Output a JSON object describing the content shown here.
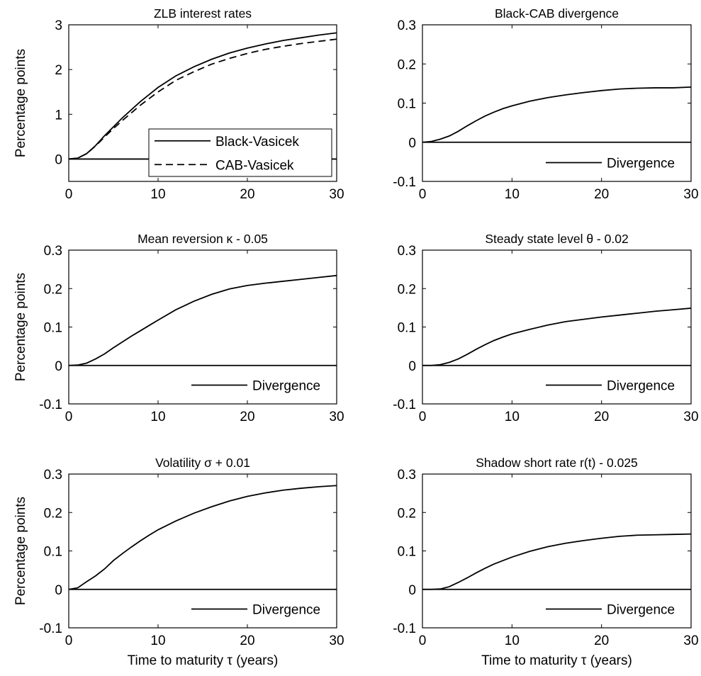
{
  "chart_data": [
    {
      "type": "line",
      "title": "ZLB interest rates",
      "xlabel": "",
      "ylabel": "Percentage points",
      "xlim": [
        0,
        30
      ],
      "ylim": [
        -0.5,
        3
      ],
      "xticks": [
        "0",
        "10",
        "20",
        "30"
      ],
      "yticks": [
        "0",
        "1",
        "2",
        "3"
      ],
      "grid": false,
      "legend": "bottom-right",
      "series": [
        {
          "name": "Black-Vasicek",
          "style": "solid",
          "x": [
            0,
            1,
            2,
            3,
            4,
            5,
            6,
            8,
            10,
            12,
            14,
            16,
            18,
            20,
            22,
            24,
            26,
            28,
            30
          ],
          "values": [
            0,
            0.02,
            0.12,
            0.3,
            0.52,
            0.72,
            0.92,
            1.28,
            1.6,
            1.86,
            2.06,
            2.23,
            2.37,
            2.48,
            2.57,
            2.65,
            2.71,
            2.77,
            2.82
          ]
        },
        {
          "name": "CAB-Vasicek",
          "style": "dashed",
          "x": [
            0,
            1,
            2,
            3,
            4,
            5,
            6,
            8,
            10,
            12,
            14,
            16,
            18,
            20,
            22,
            24,
            26,
            28,
            30
          ],
          "values": [
            0,
            0.02,
            0.12,
            0.29,
            0.49,
            0.68,
            0.86,
            1.2,
            1.5,
            1.76,
            1.95,
            2.12,
            2.25,
            2.36,
            2.45,
            2.52,
            2.58,
            2.63,
            2.68
          ]
        },
        {
          "name": "",
          "style": "solid",
          "x": [
            0,
            30
          ],
          "values": [
            0,
            0
          ]
        }
      ]
    },
    {
      "type": "line",
      "title": "Black-CAB divergence",
      "xlabel": "",
      "ylabel": "",
      "xlim": [
        0,
        30
      ],
      "ylim": [
        -0.1,
        0.3
      ],
      "xticks": [
        "0",
        "10",
        "20",
        "30"
      ],
      "yticks": [
        "-0.1",
        "0",
        "0.1",
        "0.2",
        "0.3"
      ],
      "grid": false,
      "legend": "bottom-right",
      "series": [
        {
          "name": "Divergence",
          "style": "solid",
          "x": [
            0,
            1,
            2,
            3,
            4,
            5,
            6,
            7,
            8,
            9,
            10,
            12,
            14,
            16,
            18,
            20,
            22,
            24,
            26,
            28,
            30
          ],
          "values": [
            0,
            0.002,
            0.008,
            0.016,
            0.028,
            0.042,
            0.055,
            0.067,
            0.077,
            0.086,
            0.093,
            0.105,
            0.114,
            0.121,
            0.127,
            0.132,
            0.136,
            0.138,
            0.139,
            0.139,
            0.141
          ]
        },
        {
          "name": "",
          "style": "solid",
          "x": [
            0,
            30
          ],
          "values": [
            0,
            0
          ]
        }
      ]
    },
    {
      "type": "line",
      "title": "Mean reversion   κ - 0.05",
      "xlabel": "",
      "ylabel": "Percentage points",
      "xlim": [
        0,
        30
      ],
      "ylim": [
        -0.1,
        0.3
      ],
      "xticks": [
        "0",
        "10",
        "20",
        "30"
      ],
      "yticks": [
        "-0.1",
        "0",
        "0.1",
        "0.2",
        "0.3"
      ],
      "grid": false,
      "legend": "bottom-right",
      "series": [
        {
          "name": "Divergence",
          "style": "solid",
          "x": [
            0,
            1,
            2,
            3,
            4,
            5,
            6,
            7,
            8,
            9,
            10,
            12,
            14,
            16,
            18,
            20,
            22,
            24,
            26,
            28,
            30
          ],
          "values": [
            0,
            0.001,
            0.006,
            0.017,
            0.03,
            0.046,
            0.061,
            0.076,
            0.09,
            0.104,
            0.118,
            0.145,
            0.167,
            0.185,
            0.199,
            0.208,
            0.214,
            0.219,
            0.224,
            0.229,
            0.234
          ]
        },
        {
          "name": "",
          "style": "solid",
          "x": [
            0,
            30
          ],
          "values": [
            0,
            0
          ]
        }
      ]
    },
    {
      "type": "line",
      "title": "Steady state level   θ - 0.02",
      "xlabel": "",
      "ylabel": "",
      "xlim": [
        0,
        30
      ],
      "ylim": [
        -0.1,
        0.3
      ],
      "xticks": [
        "0",
        "10",
        "20",
        "30"
      ],
      "yticks": [
        "-0.1",
        "0",
        "0.1",
        "0.2",
        "0.3"
      ],
      "grid": false,
      "legend": "bottom-right",
      "series": [
        {
          "name": "Divergence",
          "style": "solid",
          "x": [
            0,
            1,
            2,
            3,
            4,
            5,
            6,
            7,
            8,
            9,
            10,
            12,
            14,
            16,
            18,
            20,
            22,
            24,
            26,
            28,
            30
          ],
          "values": [
            0,
            0,
            0.002,
            0.008,
            0.017,
            0.029,
            0.042,
            0.054,
            0.065,
            0.074,
            0.082,
            0.094,
            0.105,
            0.114,
            0.12,
            0.126,
            0.131,
            0.136,
            0.141,
            0.145,
            0.149
          ]
        },
        {
          "name": "",
          "style": "solid",
          "x": [
            0,
            30
          ],
          "values": [
            0,
            0
          ]
        }
      ]
    },
    {
      "type": "line",
      "title": "Volatility   σ + 0.01",
      "xlabel": "Time to maturity   τ (years)",
      "ylabel": "Percentage points",
      "xlim": [
        0,
        30
      ],
      "ylim": [
        -0.1,
        0.3
      ],
      "xticks": [
        "0",
        "10",
        "20",
        "30"
      ],
      "yticks": [
        "-0.1",
        "0",
        "0.1",
        "0.2",
        "0.3"
      ],
      "grid": false,
      "legend": "bottom-right",
      "series": [
        {
          "name": "Divergence",
          "style": "solid",
          "x": [
            0,
            1,
            2,
            3,
            4,
            5,
            6,
            7,
            8,
            9,
            10,
            12,
            14,
            16,
            18,
            20,
            22,
            24,
            26,
            28,
            30
          ],
          "values": [
            0,
            0.004,
            0.02,
            0.035,
            0.053,
            0.075,
            0.093,
            0.11,
            0.126,
            0.141,
            0.155,
            0.178,
            0.198,
            0.215,
            0.23,
            0.242,
            0.251,
            0.258,
            0.263,
            0.267,
            0.27
          ]
        },
        {
          "name": "",
          "style": "solid",
          "x": [
            0,
            30
          ],
          "values": [
            0,
            0
          ]
        }
      ]
    },
    {
      "type": "line",
      "title": "Shadow short rate r(t) - 0.025",
      "xlabel": "Time to maturity   τ (years)",
      "ylabel": "",
      "xlim": [
        0,
        30
      ],
      "ylim": [
        -0.1,
        0.3
      ],
      "xticks": [
        "0",
        "10",
        "20",
        "30"
      ],
      "yticks": [
        "-0.1",
        "0",
        "0.1",
        "0.2",
        "0.3"
      ],
      "grid": false,
      "legend": "bottom-right",
      "series": [
        {
          "name": "Divergence",
          "style": "solid",
          "x": [
            0,
            1,
            2,
            3,
            4,
            5,
            6,
            7,
            8,
            9,
            10,
            12,
            14,
            16,
            18,
            20,
            22,
            24,
            26,
            28,
            30
          ],
          "values": [
            0,
            0,
            0.001,
            0.007,
            0.018,
            0.03,
            0.043,
            0.055,
            0.066,
            0.075,
            0.084,
            0.099,
            0.111,
            0.12,
            0.127,
            0.133,
            0.138,
            0.141,
            0.142,
            0.143,
            0.144
          ]
        },
        {
          "name": "",
          "style": "solid",
          "x": [
            0,
            30
          ],
          "values": [
            0,
            0
          ]
        }
      ]
    }
  ]
}
